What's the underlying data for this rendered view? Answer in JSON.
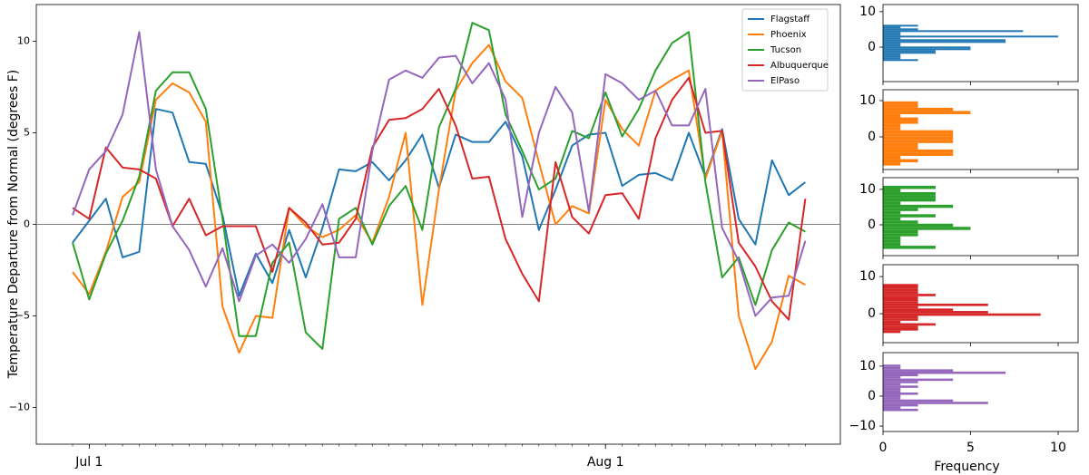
{
  "chart_data": [
    {
      "type": "line",
      "ylabel": "Temperature Departure from Normal (degrees F)",
      "categories": [
        null,
        "Jul 1",
        null,
        null,
        null,
        null,
        null,
        null,
        null,
        null,
        null,
        null,
        null,
        null,
        null,
        null,
        null,
        null,
        null,
        null,
        null,
        null,
        null,
        null,
        null,
        null,
        null,
        null,
        null,
        null,
        null,
        null,
        "Aug 1",
        null,
        null,
        null,
        null,
        null,
        null,
        null,
        null,
        null,
        null,
        null,
        null
      ],
      "ylim": [
        -12,
        12
      ],
      "yticks": [
        {
          "value": -10,
          "label": "−10"
        },
        {
          "value": -5,
          "label": "−5"
        },
        0,
        5,
        10
      ],
      "zero_line": true,
      "legend": "upper right",
      "series": [
        {
          "name": "Flagstaff",
          "color": "#1f77b4",
          "values": [
            -1.0,
            0.2,
            1.4,
            -1.8,
            -1.5,
            6.3,
            6.1,
            3.4,
            3.3,
            0.5,
            -3.9,
            -1.6,
            -3.2,
            -0.3,
            -2.9,
            -0.2,
            3.0,
            2.9,
            3.4,
            2.4,
            3.5,
            4.9,
            2.0,
            4.9,
            4.5,
            4.5,
            5.6,
            3.7,
            -0.3,
            1.9,
            4.3,
            4.9,
            5.0,
            2.1,
            2.7,
            2.8,
            2.4,
            5.0,
            2.6,
            5.2,
            0.3,
            -1.1,
            3.5,
            1.6,
            2.3
          ]
        },
        {
          "name": "Phoenix",
          "color": "#ff7f0e",
          "values": [
            -2.6,
            -3.8,
            -1.5,
            1.5,
            2.3,
            6.8,
            7.7,
            7.2,
            5.6,
            -4.5,
            -7.0,
            -5.0,
            -5.1,
            0.9,
            -0.1,
            -0.7,
            -0.3,
            0.5,
            -1.0,
            1.5,
            5.0,
            -4.4,
            1.9,
            7.3,
            8.8,
            9.8,
            7.8,
            6.9,
            3.4,
            0.0,
            1.0,
            0.6,
            6.8,
            5.2,
            4.3,
            7.3,
            7.9,
            8.4,
            2.5,
            5.1,
            -5.0,
            -7.9,
            -6.4,
            -2.8,
            -3.3
          ]
        },
        {
          "name": "Tucson",
          "color": "#2ca02c",
          "values": [
            -1.0,
            -4.1,
            -1.6,
            0.2,
            2.6,
            7.3,
            8.3,
            8.3,
            6.3,
            0.3,
            -6.1,
            -6.1,
            -2.1,
            -1.0,
            -5.9,
            -6.8,
            0.3,
            0.9,
            -1.1,
            1.0,
            2.1,
            -0.3,
            5.3,
            7.4,
            11.0,
            10.6,
            6.0,
            4.0,
            1.9,
            2.5,
            5.1,
            4.7,
            7.2,
            4.8,
            6.3,
            8.4,
            9.9,
            10.5,
            2.3,
            -2.9,
            -1.8,
            -4.4,
            -1.4,
            0.1,
            -0.4
          ]
        },
        {
          "name": "Albuquerque",
          "color": "#d62728",
          "values": [
            0.9,
            0.3,
            4.2,
            3.1,
            3.0,
            2.5,
            -0.1,
            1.4,
            -0.6,
            -0.1,
            -0.1,
            -0.1,
            -2.6,
            0.9,
            0.1,
            -1.1,
            -1.0,
            0.3,
            4.2,
            5.7,
            5.8,
            6.3,
            7.4,
            5.4,
            2.5,
            2.6,
            -0.8,
            -2.7,
            -4.2,
            3.4,
            0.4,
            -0.5,
            1.6,
            1.7,
            0.3,
            4.7,
            6.8,
            8.0,
            5.0,
            5.1,
            -1.0,
            -2.3,
            -4.2,
            -5.2,
            1.4
          ]
        },
        {
          "name": "ElPaso",
          "color": "#9467bd",
          "values": [
            0.5,
            3.0,
            4.0,
            6.0,
            10.5,
            3.0,
            -0.1,
            -1.4,
            -3.4,
            -1.3,
            -4.2,
            -1.7,
            -1.1,
            -2.1,
            -0.8,
            1.1,
            -1.8,
            -1.8,
            4.0,
            7.9,
            8.4,
            8.0,
            9.1,
            9.2,
            7.7,
            8.8,
            6.8,
            0.4,
            5.0,
            7.5,
            6.1,
            0.7,
            8.2,
            7.7,
            6.8,
            7.3,
            5.4,
            5.4,
            7.4,
            -0.2,
            -2.0,
            -5.0,
            -4.0,
            -3.9,
            -0.9
          ]
        }
      ]
    },
    {
      "type": "histogram",
      "orientation": "horizontal",
      "color": "#1f77b4",
      "xlim": [
        0,
        11.14
      ],
      "ylim": [
        -9.7,
        12
      ],
      "yticks": [
        0,
        10
      ],
      "bins": [
        -3.9,
        -3.39,
        -2.88,
        -2.37,
        -1.86,
        -1.35,
        -0.84,
        -0.33,
        0.18,
        0.69,
        1.2,
        1.71,
        2.22,
        2.73,
        3.24,
        3.75,
        4.26,
        4.77,
        5.28,
        5.79,
        6.3
      ],
      "values": [
        2,
        1,
        1,
        1,
        3,
        3,
        5,
        5,
        1,
        1,
        7,
        7,
        1,
        10,
        1,
        1,
        8,
        2,
        1,
        2
      ]
    },
    {
      "type": "histogram",
      "orientation": "horizontal",
      "color": "#ff7f0e",
      "xlim": [
        0,
        11.14
      ],
      "ylim": [
        -9,
        13
      ],
      "yticks": [
        0,
        10
      ],
      "bins": [
        -7.9,
        -7.015,
        -6.13,
        -5.245,
        -4.36,
        -3.475,
        -2.59,
        -1.705,
        -0.82,
        0.065,
        0.95,
        1.835,
        2.72,
        3.605,
        4.49,
        5.375,
        6.26,
        7.145,
        8.03,
        8.915,
        9.8
      ],
      "values": [
        1,
        2,
        1,
        4,
        4,
        2,
        2,
        4,
        4,
        4,
        4,
        1,
        1,
        2,
        2,
        1,
        5,
        4,
        2,
        2
      ]
    },
    {
      "type": "histogram",
      "orientation": "horizontal",
      "color": "#2ca02c",
      "xlim": [
        0,
        11.14
      ],
      "ylim": [
        -8.7,
        13.3
      ],
      "yticks": [
        0,
        10
      ],
      "bins": [
        -6.8,
        -5.91,
        -5.02,
        -4.13,
        -3.24,
        -2.35,
        -1.46,
        -0.57,
        0.32,
        1.21,
        2.1,
        2.99,
        3.88,
        4.77,
        5.66,
        6.55,
        7.44,
        8.33,
        9.22,
        10.11,
        11.0
      ],
      "values": [
        3,
        1,
        1,
        1,
        2,
        2,
        5,
        4,
        2,
        1,
        3,
        1,
        2,
        4,
        1,
        3,
        3,
        3,
        1,
        3
      ]
    },
    {
      "type": "histogram",
      "orientation": "horizontal",
      "color": "#d62728",
      "xlim": [
        0,
        11.14
      ],
      "ylim": [
        -7.8,
        13.2
      ],
      "yticks": [
        0,
        10
      ],
      "bins": [
        -5.2,
        -4.54,
        -3.88,
        -3.22,
        -2.56,
        -1.9,
        -1.24,
        -0.58,
        0.08,
        0.74,
        1.4,
        2.06,
        2.72,
        3.38,
        4.04,
        4.7,
        5.36,
        6.02,
        6.68,
        7.34,
        8.0
      ],
      "values": [
        1,
        2,
        2,
        3,
        1,
        2,
        2,
        9,
        6,
        4,
        2,
        6,
        2,
        2,
        2,
        3,
        2,
        2,
        2,
        2
      ]
    },
    {
      "type": "histogram",
      "orientation": "horizontal",
      "color": "#9467bd",
      "xlim": [
        0,
        11.14
      ],
      "ylim": [
        -11.8,
        14.5
      ],
      "yticks": [
        {
          "value": -10,
          "label": "−10"
        },
        0,
        10
      ],
      "xticks": [
        0,
        5,
        10
      ],
      "xlabel": "Frequency",
      "bins": [
        -5,
        -4.225,
        -3.45,
        -2.675,
        -1.9,
        -1.125,
        -0.35,
        0.425,
        1.2,
        1.975,
        2.75,
        3.525,
        4.3,
        5.075,
        5.85,
        6.625,
        7.4,
        8.175,
        8.95,
        9.725,
        10.5
      ],
      "values": [
        2,
        1,
        2,
        6,
        4,
        1,
        1,
        2,
        1,
        1,
        2,
        1,
        2,
        4,
        1,
        2,
        7,
        4,
        1,
        1
      ]
    }
  ]
}
